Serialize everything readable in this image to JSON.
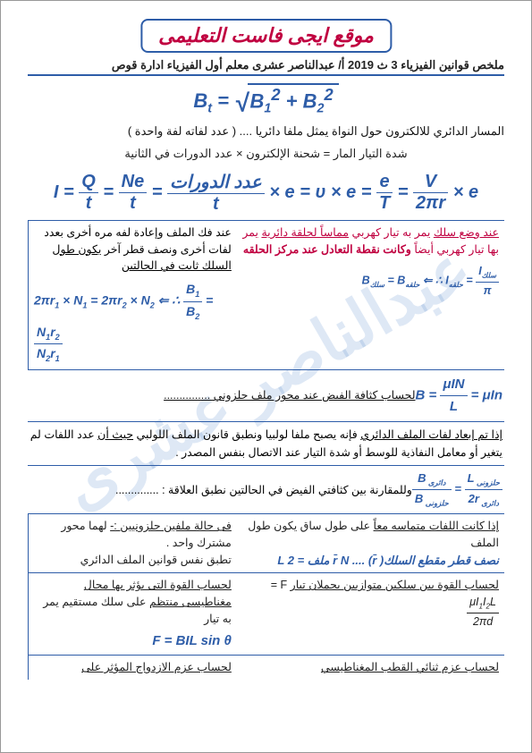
{
  "colors": {
    "blue": "#2e5da8",
    "red": "#c00040",
    "text": "#222222",
    "watermark": "rgba(70,130,200,0.18)",
    "bg": "#ffffff",
    "border": "#999999"
  },
  "fonts": {
    "title_size": 22,
    "body_size": 13,
    "formula_size": 22
  },
  "site_title": "موقع ايجى فاست التعليمى",
  "doc_header": "ملخص قوانين الفيزياء    3 ث 2019    أ/ عبدالناصر عشرى  معلم أول الفيزياء  ادارة قوص",
  "watermark_text": "عبدالناصر عشرى",
  "formula_bt_lhs": "B<sub>t</sub> =",
  "formula_bt_rhs": "B<sub>1</sub><sup>2</sup> + B<sub>2</sub><sup>2</sup>",
  "line_circular": "المسار الدائري للالكترون حول النواة يمثل ملفا دائريا ....  ( عدد لفاته لفة واحدة )",
  "line_current": "شدة التيار المار = شحنة الإلكترون × عدد الدورات في الثانية",
  "formula_I": "I = <span class='frac'><span class='num'>Q</span><span class='den'>t</span></span> = <span class='frac'><span class='num'>Ne</span><span class='den'>t</span></span> = <span class='frac'><span class='num'>عدد الدورات</span><span class='den'>t</span></span> × e = υ × e = <span class='frac'><span class='num'>e</span><span class='den'>T</span></span> = <span class='frac'><span class='num'>V</span><span class='den'>2πr</span></span> × e",
  "box1_right": "عند فك الملف وإعادة لفه مره أخرى بعدد لفات أخرى ونصف قطر آخر <u>يكون طول السلك ثابت في الحالتين</u>",
  "box1_left_text": "<u>عند وضع سلك</u> يمر به تيار كهربي <u>مماساً لحلقة دائرية</u> يمر بها تيار كهربي أيضاً <b>وكانت نقطة التعادل عند مركز الحلقه</b>",
  "box1_left_formula": "B<sub>سلك</sub> = B<sub>حلقه</sub> ⇐ ∴ I<sub>حلقه</sub> = <span class='frac'><span class='num'>I<sub>سلك</sub></span><span class='den'>π</span></span>",
  "box1_right_formula1": "2πr<sub>1</sub> × N<sub>1</sub> = 2πr<sub>2</sub> × N<sub>2</sub> ⇐ ∴ <span class='frac'><span class='num'>B<sub>1</sub></span><span class='den'>B<sub>2</sub></span></span> = <span class='frac'><span class='num'>N<sub>1</sub>r<sub>2</sub></span><span class='den'>N<sub>2</sub>r<sub>1</sub></span></span>",
  "row_solenoid_text": "لحساب كثافة الفيض عند محور ملف حلزوني  ...............",
  "row_solenoid_formula": "B = <span class='frac'><span class='num'>μIN</span><span class='den'>L</span></span> = μIn",
  "row_dimensions": "<u>إذا تم إبعاد لفات الملف الدائري</u>  فإنه يصبح ملفا لولبيا ونطبق قانون الملف اللولبي <u>حيث أن</u> عدد اللفات لم يتغير    أو معامل النفاذية للوسط أو شدة التيار عند الاتصال بنفس المصدر .",
  "row_compare_text": "وللمقارنة بين كثافتي الفيض في الحالتين نطبق العلاقة : ..............",
  "row_compare_formula": "<span class='frac'><span class='num'>B<sub> دائرى</sub></span><span class='den'>B<sub> حلزونى</sub></span></span> = <span class='frac'><span class='num'>L<sub> حلزونى</sub></span><span class='den'>2r<sub> دائرى</sub></span></span>",
  "box2_right": "<u>فى حالة ملفين حلزونيين :-</u> لهما محور مشترك واحد    .<br>تطبق نفس قوانين الملف الدائري",
  "box2_left_text": "<u>إذا كانت اللفات متماسه معاً</u> على طول ساق يكون طول  الملف",
  "box2_left_formula": "L ملف = 2 r̄ N     .... (r̄ )نصف قطر مقطع السلك",
  "box3_right": "<u>لحساب القوة التى يؤثر بها مجال مغناطيسى منتظم</u> على سلك مستقيم يمر به تيار",
  "box3_left": "<u>لحساب القوة بين سلكين متوازيين يحملان تيار</u>    F = <span class='frac'><span class='num'>μI<sub>1</sub>I<sub>2</sub>L</span><span class='den'>2πd</span></span>",
  "box3_right_formula": "F = BIL sin θ",
  "row_last_right": "لحساب عزم الازدواج المؤثر على",
  "row_last_left": "لحساب عزم ثنائي القطب المغناطيسي"
}
